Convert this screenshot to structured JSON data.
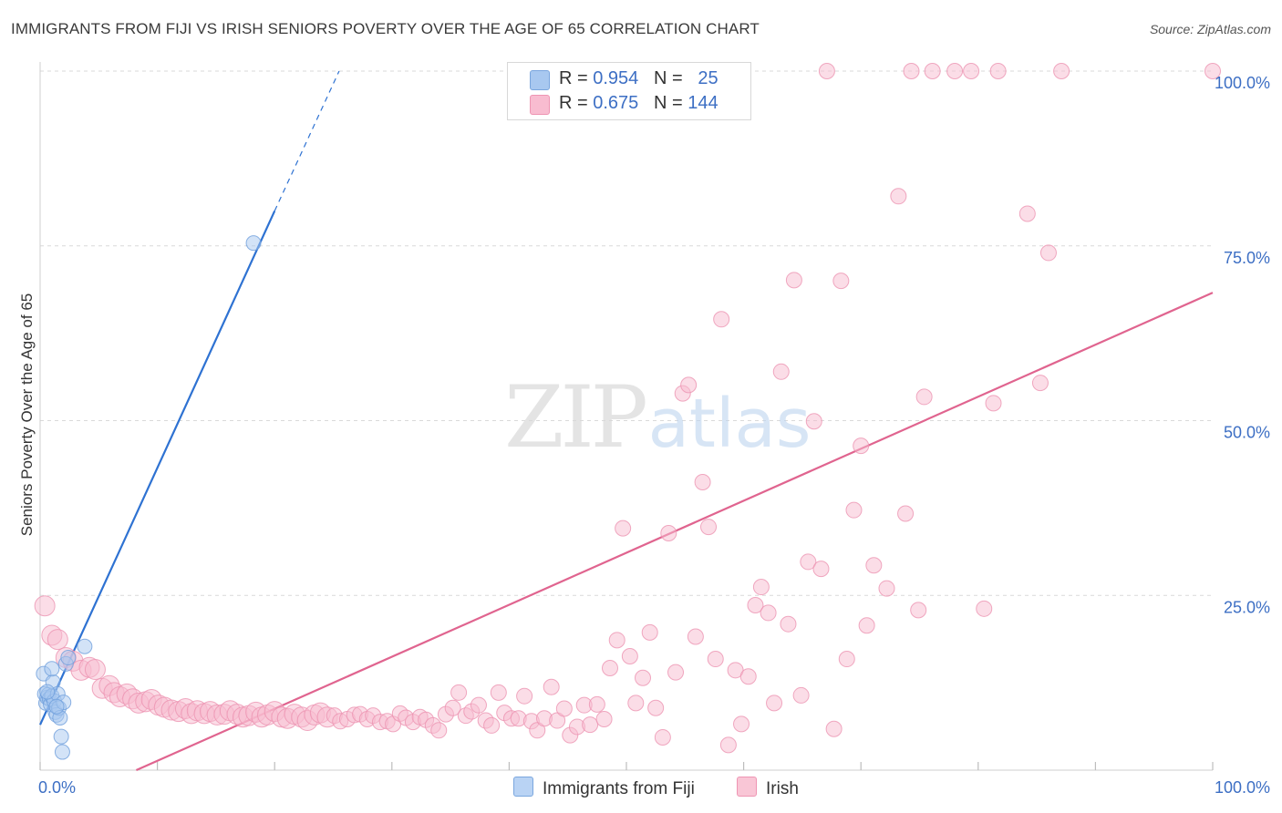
{
  "title": "IMMIGRANTS FROM FIJI VS IRISH SENIORS POVERTY OVER THE AGE OF 65 CORRELATION CHART",
  "source": "Source: ZipAtlas.com",
  "watermark": {
    "zip": "ZIP",
    "atlas": "atlas"
  },
  "legend_top": {
    "rows": [
      {
        "r_label": "R = ",
        "r_value": "0.954",
        "n_label": "N = ",
        "n_value": "25",
        "color": "#a8c8f0",
        "border": "#7aa6de"
      },
      {
        "r_label": "R = ",
        "r_value": "0.675",
        "n_label": "N = ",
        "n_value": "144",
        "color": "#f8bcd0",
        "border": "#ee95b3"
      }
    ]
  },
  "legend_bottom": [
    {
      "label": "Immigrants from Fiji",
      "color": "#b9d3f4",
      "border": "#7aa6de"
    },
    {
      "label": "Irish",
      "color": "#f9c6d6",
      "border": "#ee95b3"
    }
  ],
  "chart_data": {
    "type": "scatter",
    "title": "IMMIGRANTS FROM FIJI VS IRISH SENIORS POVERTY OVER THE AGE OF 65 CORRELATION CHART",
    "xlabel": "",
    "ylabel": "Seniors Poverty Over the Age of 65",
    "xlim": [
      0,
      100
    ],
    "ylim": [
      0,
      100
    ],
    "x_tick_labels": [
      {
        "value": 0,
        "label": "0.0%"
      },
      {
        "value": 100,
        "label": "100.0%"
      }
    ],
    "y_tick_labels": [
      {
        "value": 25,
        "label": "25.0%"
      },
      {
        "value": 50,
        "label": "50.0%"
      },
      {
        "value": 75,
        "label": "75.0%"
      },
      {
        "value": 100,
        "label": "100.0%"
      }
    ],
    "x_gridlines": [
      0,
      10,
      20,
      30,
      40,
      50,
      60,
      70,
      80,
      90,
      100
    ],
    "y_gridlines": [
      25,
      50,
      75,
      100
    ],
    "series": [
      {
        "name": "Immigrants from Fiji",
        "color": "#a8c8f0",
        "stroke": "#6f9fdc",
        "points": [
          [
            0.3,
            13.8
          ],
          [
            0.4,
            10.9
          ],
          [
            0.5,
            9.6
          ],
          [
            0.6,
            10.4
          ],
          [
            0.7,
            10.8
          ],
          [
            0.8,
            10.2
          ],
          [
            0.9,
            9.4
          ],
          [
            1.0,
            10.6
          ],
          [
            1.1,
            12.6
          ],
          [
            1.2,
            9.9
          ],
          [
            1.3,
            8.3
          ],
          [
            1.4,
            7.9
          ],
          [
            1.5,
            10.9
          ],
          [
            1.6,
            8.9
          ],
          [
            1.7,
            7.5
          ],
          [
            1.8,
            4.8
          ],
          [
            1.9,
            2.6
          ],
          [
            2.0,
            9.7
          ],
          [
            2.2,
            15.2
          ],
          [
            2.4,
            16.1
          ],
          [
            3.8,
            17.7
          ],
          [
            18.2,
            75.4
          ],
          [
            1.0,
            14.5
          ],
          [
            0.6,
            11.2
          ],
          [
            1.4,
            9.1
          ]
        ],
        "trendline": {
          "x0": 0,
          "y0": 6.5,
          "x1": 20,
          "y1": 80.0,
          "dashed_to_x": 25.5,
          "dashed_to_y": 100.0,
          "color": "#2e72d2"
        }
      },
      {
        "name": "Irish",
        "color": "#f8bcd0",
        "stroke": "#ec93b1",
        "points": [
          [
            0.4,
            23.5
          ],
          [
            1.0,
            19.3
          ],
          [
            1.5,
            18.7
          ],
          [
            2.2,
            16.1
          ],
          [
            2.8,
            15.6
          ],
          [
            3.5,
            14.3
          ],
          [
            4.2,
            14.7
          ],
          [
            4.7,
            14.4
          ],
          [
            5.3,
            11.7
          ],
          [
            5.9,
            12.1
          ],
          [
            6.3,
            11.1
          ],
          [
            6.8,
            10.5
          ],
          [
            7.4,
            10.9
          ],
          [
            7.9,
            10.2
          ],
          [
            8.4,
            9.6
          ],
          [
            9.0,
            9.8
          ],
          [
            9.5,
            10.1
          ],
          [
            10.1,
            9.3
          ],
          [
            10.6,
            9.0
          ],
          [
            11.2,
            8.6
          ],
          [
            11.8,
            8.4
          ],
          [
            12.4,
            8.8
          ],
          [
            12.9,
            8.1
          ],
          [
            13.4,
            8.5
          ],
          [
            14.0,
            8.1
          ],
          [
            14.5,
            8.4
          ],
          [
            15.1,
            7.9
          ],
          [
            15.7,
            8.0
          ],
          [
            16.2,
            8.5
          ],
          [
            16.8,
            8.0
          ],
          [
            17.3,
            7.6
          ],
          [
            17.8,
            7.8
          ],
          [
            18.4,
            8.3
          ],
          [
            18.9,
            7.6
          ],
          [
            19.4,
            7.9
          ],
          [
            20.0,
            8.4
          ],
          [
            20.6,
            7.6
          ],
          [
            21.1,
            7.4
          ],
          [
            21.7,
            8.0
          ],
          [
            22.3,
            7.6
          ],
          [
            22.8,
            7.1
          ],
          [
            23.4,
            7.9
          ],
          [
            23.9,
            8.2
          ],
          [
            24.5,
            7.6
          ],
          [
            25.1,
            7.8
          ],
          [
            25.6,
            7.0
          ],
          [
            26.2,
            7.3
          ],
          [
            26.8,
            7.9
          ],
          [
            27.3,
            8.0
          ],
          [
            27.9,
            7.3
          ],
          [
            28.4,
            7.8
          ],
          [
            29.0,
            6.9
          ],
          [
            29.6,
            7.0
          ],
          [
            30.1,
            6.6
          ],
          [
            30.7,
            8.1
          ],
          [
            31.2,
            7.5
          ],
          [
            31.8,
            6.9
          ],
          [
            32.4,
            7.6
          ],
          [
            32.9,
            7.2
          ],
          [
            33.5,
            6.4
          ],
          [
            34.0,
            5.7
          ],
          [
            34.6,
            8.0
          ],
          [
            35.2,
            8.9
          ],
          [
            35.7,
            11.1
          ],
          [
            36.3,
            7.8
          ],
          [
            36.8,
            8.4
          ],
          [
            37.4,
            9.3
          ],
          [
            38.0,
            7.1
          ],
          [
            38.5,
            6.4
          ],
          [
            39.1,
            11.1
          ],
          [
            39.6,
            8.2
          ],
          [
            40.2,
            7.4
          ],
          [
            40.8,
            7.4
          ],
          [
            41.3,
            10.6
          ],
          [
            41.9,
            7.0
          ],
          [
            42.4,
            5.7
          ],
          [
            43.0,
            7.4
          ],
          [
            43.6,
            11.9
          ],
          [
            44.1,
            7.1
          ],
          [
            44.7,
            8.8
          ],
          [
            45.2,
            5.0
          ],
          [
            45.8,
            6.2
          ],
          [
            46.4,
            9.3
          ],
          [
            46.9,
            6.5
          ],
          [
            47.5,
            9.4
          ],
          [
            48.1,
            7.3
          ],
          [
            48.6,
            14.6
          ],
          [
            49.2,
            18.6
          ],
          [
            49.7,
            34.6
          ],
          [
            50.3,
            16.3
          ],
          [
            50.8,
            9.6
          ],
          [
            51.4,
            13.2
          ],
          [
            52.0,
            19.7
          ],
          [
            52.5,
            8.9
          ],
          [
            53.1,
            4.7
          ],
          [
            53.6,
            33.9
          ],
          [
            54.2,
            14.0
          ],
          [
            54.8,
            53.9
          ],
          [
            55.3,
            55.1
          ],
          [
            55.9,
            19.1
          ],
          [
            56.5,
            41.2
          ],
          [
            57.0,
            34.8
          ],
          [
            57.6,
            15.9
          ],
          [
            58.1,
            64.5
          ],
          [
            58.7,
            3.6
          ],
          [
            59.3,
            14.3
          ],
          [
            59.8,
            6.6
          ],
          [
            60.4,
            13.4
          ],
          [
            61.0,
            23.6
          ],
          [
            61.5,
            26.2
          ],
          [
            62.1,
            22.5
          ],
          [
            62.6,
            9.6
          ],
          [
            63.2,
            57.0
          ],
          [
            63.8,
            20.9
          ],
          [
            64.3,
            70.1
          ],
          [
            64.9,
            10.7
          ],
          [
            65.5,
            29.8
          ],
          [
            66.0,
            49.9
          ],
          [
            66.6,
            28.8
          ],
          [
            67.1,
            100.0
          ],
          [
            67.7,
            5.9
          ],
          [
            68.3,
            70.0
          ],
          [
            68.8,
            15.9
          ],
          [
            69.4,
            37.2
          ],
          [
            70.0,
            46.4
          ],
          [
            70.5,
            20.7
          ],
          [
            71.1,
            29.3
          ],
          [
            72.2,
            26.0
          ],
          [
            73.2,
            82.1
          ],
          [
            73.8,
            36.7
          ],
          [
            74.3,
            100.0
          ],
          [
            74.9,
            22.9
          ],
          [
            75.4,
            53.4
          ],
          [
            76.1,
            100.0
          ],
          [
            78.0,
            100.0
          ],
          [
            79.4,
            100.0
          ],
          [
            80.5,
            23.1
          ],
          [
            81.7,
            100.0
          ],
          [
            81.3,
            52.5
          ],
          [
            84.2,
            79.6
          ],
          [
            85.3,
            55.4
          ],
          [
            86.0,
            74.0
          ],
          [
            87.1,
            100.0
          ],
          [
            100.0,
            100.0
          ]
        ],
        "trendline": {
          "x0": 8.2,
          "y0": 0.0,
          "x1": 100,
          "y1": 68.3,
          "color": "#e0648f"
        }
      }
    ]
  }
}
